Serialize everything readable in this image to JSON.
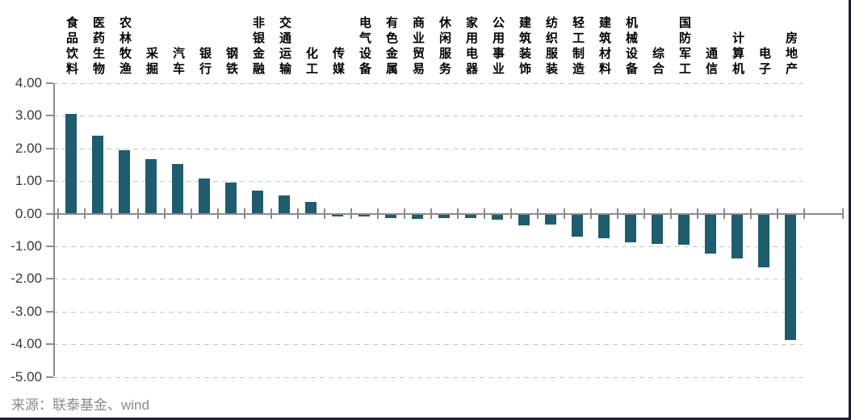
{
  "chart_data": {
    "type": "bar",
    "title": "",
    "categories": [
      "食品饮料",
      "医药生物",
      "农林牧渔",
      "采掘",
      "汽车",
      "银行",
      "钢铁",
      "非银金融",
      "交通运输",
      "化工",
      "传媒",
      "电气设备",
      "有色金属",
      "商业贸易",
      "休闲服务",
      "家用电器",
      "公用事业",
      "建筑装饰",
      "纺织服装",
      "轻工制造",
      "建筑材料",
      "机械设备",
      "综合",
      "国防军工",
      "通信",
      "计算机",
      "电子",
      "房地产"
    ],
    "values": [
      3.05,
      2.4,
      1.95,
      1.68,
      1.53,
      1.07,
      0.95,
      0.7,
      0.55,
      0.37,
      -0.05,
      -0.07,
      -0.1,
      -0.13,
      -0.11,
      -0.11,
      -0.16,
      -0.33,
      -0.31,
      -0.68,
      -0.74,
      -0.85,
      -0.9,
      -0.94,
      -1.21,
      -1.36,
      -1.61,
      -3.84
    ],
    "xlabel": "",
    "ylabel": "",
    "ylim": [
      -5,
      4
    ],
    "ytick_labels": [
      "4.00",
      "3.00",
      "2.00",
      "1.00",
      "0.00",
      "-1.00",
      "-2.00",
      "-3.00",
      "-4.00",
      "-5.00"
    ],
    "grid": "horizontal-dashed",
    "legend": "none",
    "bar_color": "#1F5C6D",
    "axis_color": "#8C8C8C",
    "gridline_color": "#C6C6C6",
    "source": "来源：联泰基金、wind"
  }
}
